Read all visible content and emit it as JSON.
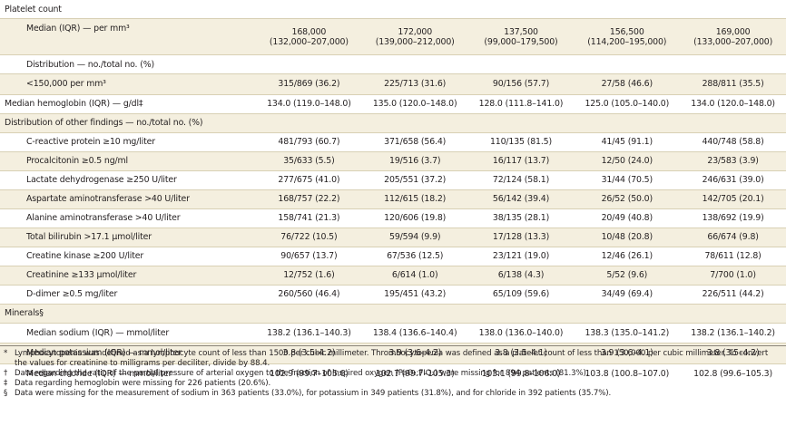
{
  "sections": {
    "platelet": "Platelet count",
    "other": "Distribution of other findings — no./total no. (%)",
    "minerals": "Minerals§"
  },
  "platelet": {
    "median_label": "Median (IQR) — per mm³",
    "median": [
      "168,000",
      "172,000",
      "137,500",
      "156,500",
      "169,000"
    ],
    "iqr": [
      "(132,000–207,000)",
      "(139,000–212,000)",
      "(99,000–179,500)",
      "(114,200–195,000)",
      "(133,000–207,000)"
    ],
    "distribution_label": "Distribution — no./total no. (%)",
    "lt150_label": "<150,000 per mm³",
    "lt150": [
      "315/869 (36.2)",
      "225/713 (31.6)",
      "90/156 (57.7)",
      "27/58 (46.6)",
      "288/811 (35.5)"
    ]
  },
  "hemoglobin": {
    "label": "Median hemoglobin (IQR) — g/dl‡",
    "values": [
      "134.0 (119.0–148.0)",
      "135.0 (120.0–148.0)",
      "128.0 (111.8–141.0)",
      "125.0 (105.0–140.0)",
      "134.0 (120.0–148.0)"
    ]
  },
  "findings": [
    {
      "label": "C-reactive protein ≥10 mg/liter",
      "values": [
        "481/793 (60.7)",
        "371/658 (56.4)",
        "110/135 (81.5)",
        "41/45 (91.1)",
        "440/748 (58.8)"
      ]
    },
    {
      "label": "Procalcitonin ≥0.5 ng/ml",
      "values": [
        "35/633 (5.5)",
        "19/516 (3.7)",
        "16/117 (13.7)",
        "12/50 (24.0)",
        "23/583 (3.9)"
      ]
    },
    {
      "label": "Lactate dehydrogenase ≥250 U/liter",
      "values": [
        "277/675 (41.0)",
        "205/551 (37.2)",
        "72/124 (58.1)",
        "31/44 (70.5)",
        "246/631 (39.0)"
      ]
    },
    {
      "label": "Aspartate aminotransferase >40 U/liter",
      "values": [
        "168/757 (22.2)",
        "112/615 (18.2)",
        "56/142 (39.4)",
        "26/52 (50.0)",
        "142/705 (20.1)"
      ]
    },
    {
      "label": "Alanine aminotransferase >40 U/liter",
      "values": [
        "158/741 (21.3)",
        "120/606 (19.8)",
        "38/135 (28.1)",
        "20/49 (40.8)",
        "138/692 (19.9)"
      ]
    },
    {
      "label": "Total bilirubin >17.1 μmol/liter",
      "values": [
        "76/722 (10.5)",
        "59/594 (9.9)",
        "17/128 (13.3)",
        "10/48 (20.8)",
        "66/674 (9.8)"
      ]
    },
    {
      "label": "Creatine kinase ≥200 U/liter",
      "values": [
        "90/657 (13.7)",
        "67/536 (12.5)",
        "23/121 (19.0)",
        "12/46 (26.1)",
        "78/611 (12.8)"
      ]
    },
    {
      "label": "Creatinine ≥133 μmol/liter",
      "values": [
        "12/752 (1.6)",
        "6/614 (1.0)",
        "6/138 (4.3)",
        "5/52 (9.6)",
        "7/700 (1.0)"
      ]
    },
    {
      "label": "D-dimer ≥0.5 mg/liter",
      "values": [
        "260/560 (46.4)",
        "195/451 (43.2)",
        "65/109 (59.6)",
        "34/49 (69.4)",
        "226/511 (44.2)"
      ]
    }
  ],
  "minerals": [
    {
      "label": "Median sodium (IQR) — mmol/liter",
      "values": [
        "138.2 (136.1–140.3)",
        "138.4 (136.6–140.4)",
        "138.0 (136.0–140.0)",
        "138.3 (135.0–141.2)",
        "138.2 (136.1–140.2)"
      ]
    },
    {
      "label": "Median potassium (IQR) — mmol/liter",
      "values": [
        "3.8 (3.5–4.2)",
        "3.9 (3.6–4.2)",
        "3.8 (3.5–4.1)",
        "3.9 (3.6–4.1)",
        "3.8 (3.5–4.2)"
      ]
    },
    {
      "label": "Median chloride (IQR) — mmol/liter",
      "values": [
        "102.9 (99.7–105.6)",
        "102.7 (99.7–105.3)",
        "103.1 (99.8–106.0)",
        "103.8 (100.8–107.0)",
        "102.8 (99.6–105.3)"
      ]
    }
  ],
  "footnotes": [
    {
      "mark": "*",
      "text": "Lymphocytopenia was defined as a lymphocyte count of less than 1500 per cubic millimeter. Thrombocytopenia was defined as a platelet count of less than 150,000 per cubic millimeter. To convert the values for creatinine to milligrams per deciliter, divide by 88.4."
    },
    {
      "mark": "†",
      "text": "Data regarding the ratio of the partial pressure of arterial oxygen to the fraction of inspired oxygen (PaO₂:FIO₂) were missing for 894 patients (81.3%)."
    },
    {
      "mark": "‡",
      "text": "Data regarding hemoglobin were missing for 226 patients (20.6%)."
    },
    {
      "mark": "§",
      "text": "Data were missing for the measurement of sodium in 363 patients (33.0%), for potassium in 349 patients (31.8%), and for chloride in 392 patients (35.7%)."
    }
  ]
}
